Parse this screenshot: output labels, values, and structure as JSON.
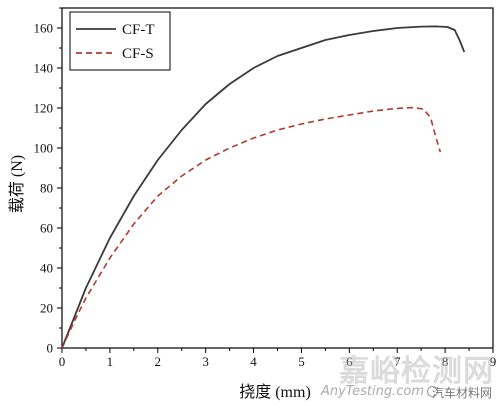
{
  "chart_data": {
    "type": "line",
    "xlabel": "挠度 (mm)",
    "ylabel": "载荷 (N)",
    "xlim": [
      0,
      9
    ],
    "ylim": [
      0,
      170
    ],
    "xticks": [
      0,
      1,
      2,
      3,
      4,
      5,
      6,
      7,
      8,
      9
    ],
    "yticks": [
      0,
      20,
      40,
      60,
      80,
      100,
      120,
      140,
      160
    ],
    "grid": false,
    "legend": "top-left",
    "series": [
      {
        "name": "CF-T",
        "color": "#3a3a3a",
        "style": "solid",
        "x": [
          0,
          0.25,
          0.5,
          1,
          1.5,
          2,
          2.5,
          3,
          3.5,
          4,
          4.5,
          5,
          5.5,
          6,
          6.5,
          7,
          7.5,
          7.8,
          8.05,
          8.2,
          8.3,
          8.4
        ],
        "y": [
          0,
          15,
          30,
          55,
          76,
          94,
          109,
          122,
          132,
          140,
          146,
          150,
          154,
          156.5,
          158.5,
          160,
          160.7,
          160.8,
          160.5,
          159,
          154,
          148
        ]
      },
      {
        "name": "CF-S",
        "color": "#b03a2e",
        "style": "dashed",
        "x": [
          0,
          0.25,
          0.5,
          1,
          1.5,
          2,
          2.5,
          3,
          3.5,
          4,
          4.5,
          5,
          5.5,
          6,
          6.5,
          7,
          7.3,
          7.55,
          7.7,
          7.8,
          7.9
        ],
        "y": [
          0,
          13,
          25,
          45,
          62,
          76,
          86,
          94,
          100,
          105,
          109,
          112,
          114.5,
          116.5,
          118.5,
          119.8,
          120.2,
          119.5,
          115,
          106,
          98
        ]
      }
    ]
  },
  "watermark": {
    "main": "嘉峪检测网",
    "url": "AnyTesting.com",
    "account": "汽车材料网"
  }
}
